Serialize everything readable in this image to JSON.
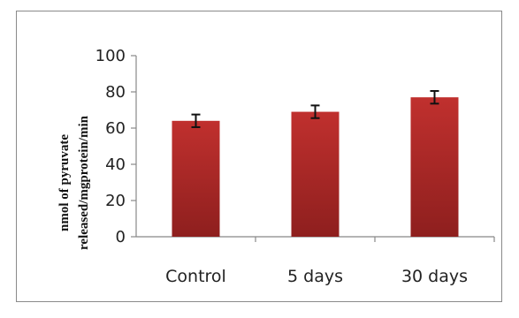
{
  "chart_data": {
    "type": "bar",
    "categories": [
      "Control",
      "5 days",
      "30 days"
    ],
    "values": [
      64,
      69,
      77
    ],
    "error": [
      3.5,
      3.5,
      3.5
    ],
    "ylabel_lines": [
      "nmol of pyruvate",
      "released/mgprotein/min"
    ],
    "xlabel": "",
    "title": "",
    "ylim": [
      0,
      100
    ],
    "yticks": [
      0,
      20,
      40,
      60,
      80,
      100
    ],
    "grid": false,
    "legend": "none",
    "bar_color": "#c0302e",
    "bar_color_dark": "#8e1f1e"
  }
}
